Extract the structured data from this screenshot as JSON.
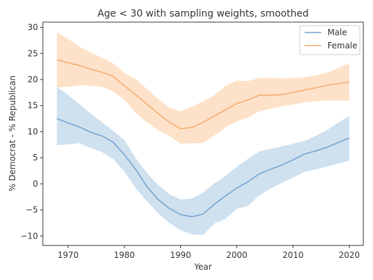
{
  "chart_data": {
    "type": "line",
    "title": "Age < 30 with sampling weights, smoothed",
    "xlabel": "Year",
    "ylabel": "% Democrat - % Republican",
    "xlim": [
      1965.5,
      2022.5
    ],
    "ylim": [
      -11.8,
      31.0
    ],
    "xticks": [
      1970,
      1980,
      1990,
      2000,
      2010,
      2020
    ],
    "yticks": [
      -10,
      -5,
      0,
      5,
      10,
      15,
      20,
      25,
      30
    ],
    "legend_position": "upper-right",
    "x": [
      1968,
      1970,
      1972,
      1974,
      1976,
      1978,
      1980,
      1982,
      1984,
      1986,
      1988,
      1990,
      1992,
      1994,
      1996,
      1998,
      2000,
      2002,
      2004,
      2006,
      2008,
      2010,
      2012,
      2014,
      2016,
      2018,
      2020
    ],
    "series": [
      {
        "name": "Male",
        "color": "#6fa1cf",
        "band_color": "#cfe0ef",
        "values": [
          12.5,
          11.7,
          10.9,
          9.9,
          9.2,
          8.0,
          5.6,
          2.8,
          -0.5,
          -3.0,
          -4.7,
          -5.9,
          -6.3,
          -5.8,
          -3.9,
          -2.3,
          -0.8,
          0.4,
          1.9,
          2.8,
          3.6,
          4.6,
          5.7,
          6.3,
          7.0,
          7.9,
          8.8
        ],
        "upper": [
          18.6,
          17.0,
          15.3,
          13.5,
          11.8,
          10.2,
          8.4,
          5.0,
          2.1,
          -0.2,
          -2.0,
          -3.0,
          -2.8,
          -1.7,
          0.1,
          1.5,
          3.3,
          4.8,
          6.2,
          6.7,
          7.2,
          7.7,
          8.2,
          9.2,
          10.3,
          11.7,
          13.0
        ],
        "lower": [
          7.4,
          7.6,
          7.8,
          6.9,
          6.1,
          4.8,
          2.4,
          -0.8,
          -3.3,
          -5.6,
          -7.5,
          -8.9,
          -9.7,
          -9.8,
          -7.6,
          -6.7,
          -4.8,
          -4.2,
          -2.2,
          -0.9,
          0.2,
          1.2,
          2.3,
          2.8,
          3.3,
          3.9,
          4.4
        ]
      },
      {
        "name": "Female",
        "color": "#f4a96b",
        "band_color": "#fde2c9",
        "values": [
          23.8,
          23.2,
          22.7,
          22.0,
          21.4,
          20.6,
          18.8,
          17.1,
          15.3,
          13.5,
          11.8,
          10.6,
          10.8,
          11.8,
          13.0,
          14.2,
          15.4,
          16.1,
          17.0,
          17.0,
          17.1,
          17.5,
          18.0,
          18.4,
          18.9,
          19.2,
          19.5
        ],
        "upper": [
          29.0,
          27.8,
          26.3,
          25.2,
          24.2,
          23.1,
          21.3,
          20.1,
          18.2,
          16.3,
          14.6,
          13.9,
          14.8,
          15.8,
          17.0,
          18.8,
          19.8,
          19.7,
          20.3,
          20.3,
          20.2,
          20.3,
          20.4,
          20.8,
          21.3,
          22.2,
          23.1
        ],
        "lower": [
          18.5,
          18.6,
          18.9,
          18.8,
          18.6,
          17.7,
          16.1,
          13.6,
          11.8,
          10.3,
          9.2,
          7.7,
          7.8,
          7.8,
          9.3,
          10.8,
          12.0,
          12.7,
          13.9,
          14.4,
          14.9,
          15.2,
          15.6,
          15.8,
          16.0,
          16.0,
          15.9
        ]
      }
    ]
  }
}
